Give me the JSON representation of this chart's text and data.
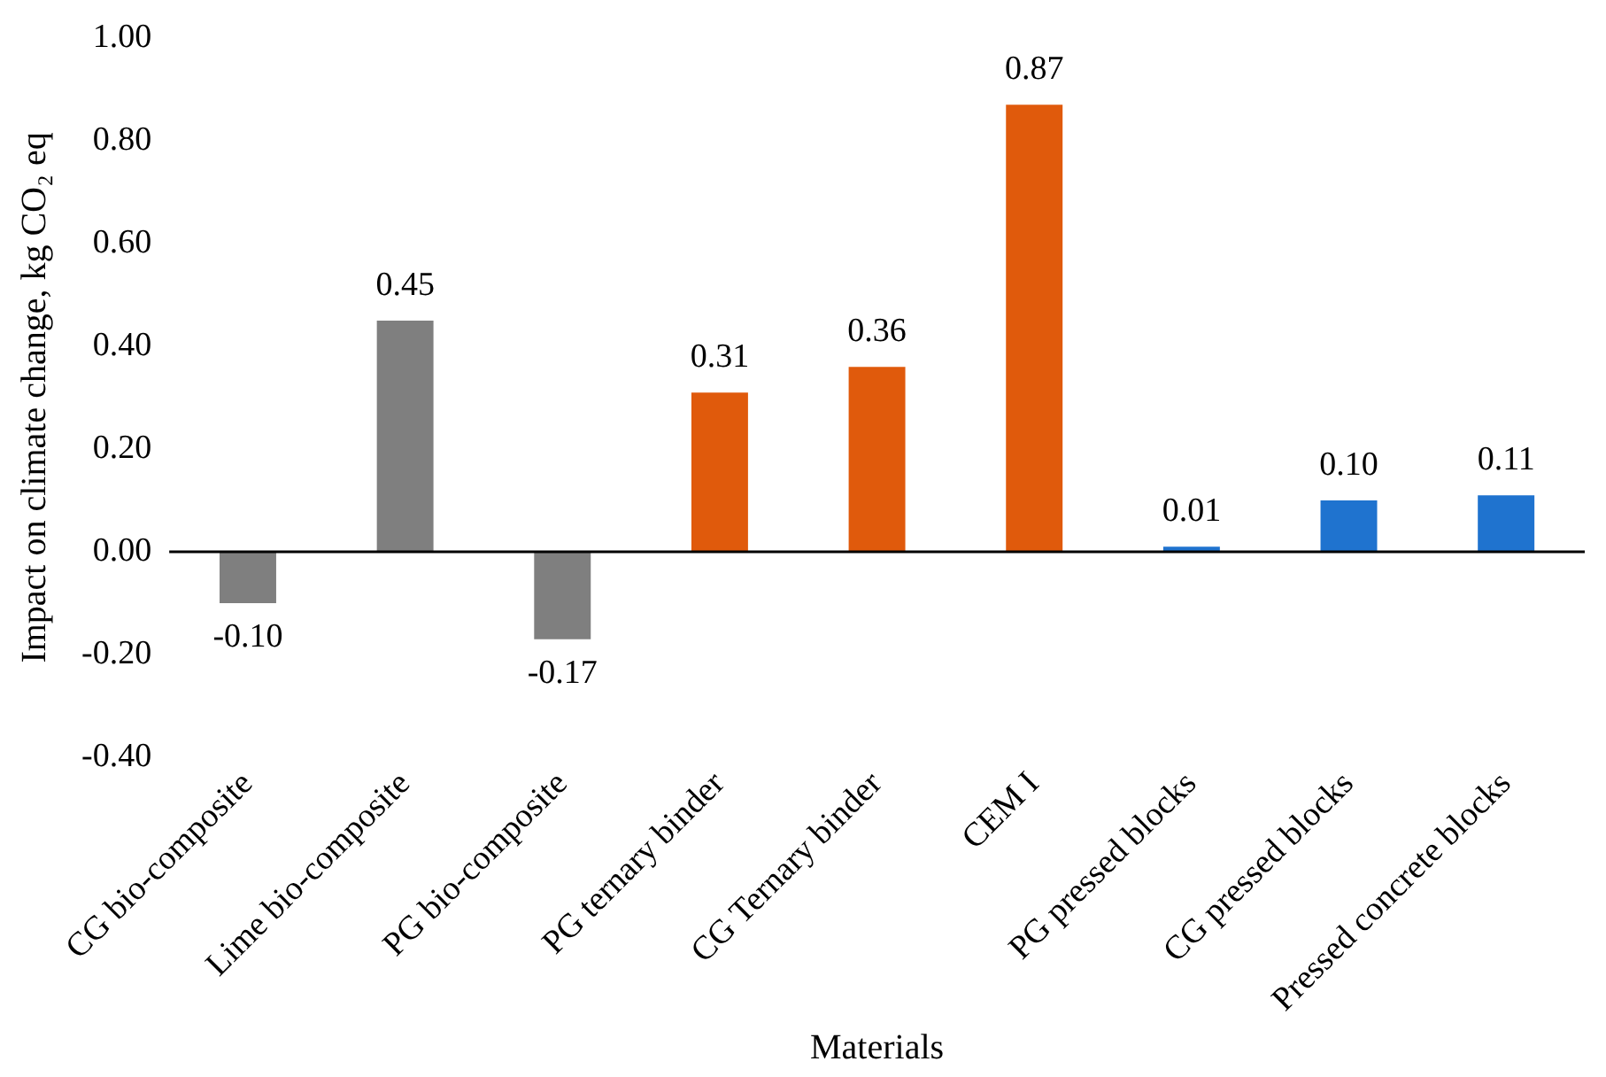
{
  "chart_data": {
    "type": "bar",
    "xlabel": "Materials",
    "ylabel": "Impact on climate change, kg CO₂ eq",
    "categories": [
      "CG bio-composite",
      "Lime bio-composite",
      "PG bio-composite",
      "PG ternary binder",
      "CG Ternary binder",
      "CEM I",
      "PG pressed blocks",
      "CG pressed blocks",
      "Pressed concrete blocks"
    ],
    "values": [
      -0.1,
      0.45,
      -0.17,
      0.31,
      0.36,
      0.87,
      0.01,
      0.1,
      0.11
    ],
    "colors": [
      "#7f7f7f",
      "#7f7f7f",
      "#7f7f7f",
      "#e05a0c",
      "#e05a0c",
      "#e05a0c",
      "#1f73cf",
      "#1f73cf",
      "#1f73cf"
    ],
    "value_labels": [
      "-0.10",
      "0.45",
      "-0.17",
      "0.31",
      "0.36",
      "0.87",
      "0.01",
      "0.10",
      "0.11"
    ],
    "ylim": [
      -0.4,
      1.0
    ],
    "yticks": [
      {
        "value": -0.4,
        "label": "-0.40"
      },
      {
        "value": -0.2,
        "label": "-0.20"
      },
      {
        "value": 0,
        "label": "0.00"
      },
      {
        "value": 0.2,
        "label": "0.20"
      },
      {
        "value": 0.4,
        "label": "0.40"
      },
      {
        "value": 0.6,
        "label": "0.60"
      },
      {
        "value": 0.8,
        "label": "0.80"
      },
      {
        "value": 1.0,
        "label": "1.00"
      }
    ],
    "ref_lines": [
      {
        "axis": "y",
        "value": 0,
        "color": "#000000"
      }
    ],
    "grid": false,
    "legend": false
  }
}
